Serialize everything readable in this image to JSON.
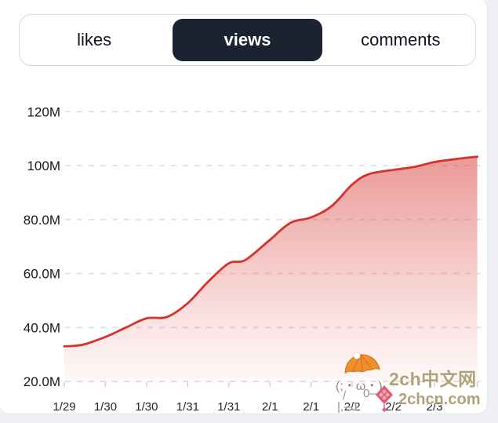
{
  "ui": {
    "tabs": [
      {
        "label": "likes",
        "selected": false
      },
      {
        "label": "views",
        "selected": true
      },
      {
        "label": "comments",
        "selected": false
      }
    ]
  },
  "colors": {
    "accent_line": "#d7312b",
    "selected_tab_bg": "#1b2230",
    "selected_tab_text": "#ffffff",
    "tab_text": "#0f1320",
    "grid": "#dfe0e5",
    "tick": "#cfd0d6",
    "page_bg": "#eef0f3",
    "card_bg": "#ffffff",
    "y_label_color": "#16181d",
    "x_label_color": "#1f2329",
    "watermark_text": "#b2a178"
  },
  "chart_data": {
    "type": "area",
    "title": "",
    "xlabel": "",
    "ylabel": "",
    "x_tick_labels": [
      "1/29",
      "1/30",
      "1/30",
      "1/31",
      "1/31",
      "2/1",
      "2/1",
      "2/2",
      "2/2",
      "2/3"
    ],
    "x_note": "dates repeat: data sampled at half-day intervals; x expressed in tick units",
    "y_tick_labels": [
      "20.0M",
      "40.0M",
      "60.0M",
      "80.0M",
      "100M",
      "120M"
    ],
    "y_tick_values": [
      20,
      40,
      60,
      80,
      100,
      120
    ],
    "y_unit": "millions of views",
    "ylim": [
      20,
      126
    ],
    "xlim": [
      0,
      10.04
    ],
    "grid": "horizontal-dashed",
    "legend": "none",
    "series": [
      {
        "name": "views",
        "color": "#d7312b",
        "fill": "red gradient fading downward to white",
        "points": [
          [
            0,
            33
          ],
          [
            0.45,
            33.6
          ],
          [
            1,
            36.5
          ],
          [
            1.5,
            40
          ],
          [
            2,
            43.4
          ],
          [
            2.5,
            43.9
          ],
          [
            3,
            49
          ],
          [
            3.5,
            57
          ],
          [
            4,
            63.8
          ],
          [
            4.4,
            65
          ],
          [
            5,
            72.5
          ],
          [
            5.5,
            78.8
          ],
          [
            6,
            80.8
          ],
          [
            6.5,
            85
          ],
          [
            7,
            93
          ],
          [
            7.4,
            96.8
          ],
          [
            8,
            98.4
          ],
          [
            8.5,
            99.5
          ],
          [
            9,
            101.3
          ],
          [
            9.5,
            102.4
          ],
          [
            10.04,
            103.3
          ]
        ]
      }
    ]
  },
  "watermark": {
    "site_name": "2ch中文网",
    "site_url": "2chcn.com",
    "kaomoji_face": "(;・ω・)",
    "kaomoji_arm_left": "/",
    "kaomoji_arm_right": "0—",
    "kaomoji_legs": "|,--J"
  }
}
